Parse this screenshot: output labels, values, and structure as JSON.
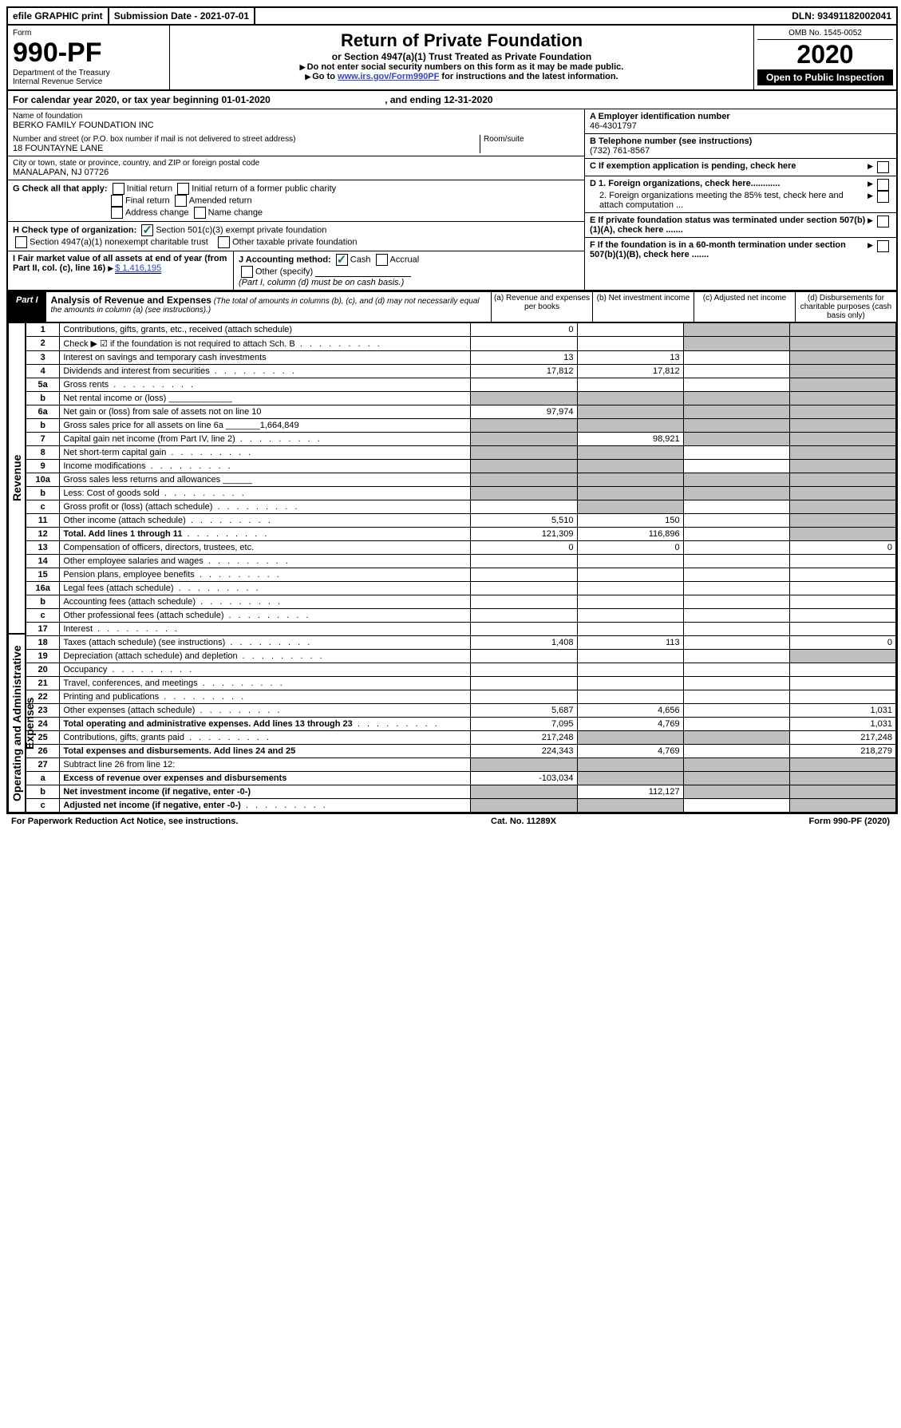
{
  "topbar": {
    "efile": "efile GRAPHIC print",
    "submission": "Submission Date - 2021-07-01",
    "dln": "DLN: 93491182002041"
  },
  "header": {
    "form_label": "Form",
    "form_no": "990-PF",
    "dept": "Department of the Treasury",
    "irs": "Internal Revenue Service",
    "title": "Return of Private Foundation",
    "subtitle": "or Section 4947(a)(1) Trust Treated as Private Foundation",
    "instr1": "Do not enter social security numbers on this form as it may be made public.",
    "instr2_pre": "Go to ",
    "instr2_link": "www.irs.gov/Form990PF",
    "instr2_post": " for instructions and the latest information.",
    "omb": "OMB No. 1545-0052",
    "year": "2020",
    "open": "Open to Public Inspection"
  },
  "calendar": {
    "text_pre": "For calendar year 2020, or tax year beginning ",
    "begin": "01-01-2020",
    "mid": " , and ending ",
    "end": "12-31-2020"
  },
  "entity": {
    "name_label": "Name of foundation",
    "name": "BERKO FAMILY FOUNDATION INC",
    "addr_label": "Number and street (or P.O. box number if mail is not delivered to street address)",
    "addr": "18 FOUNTAYNE LANE",
    "room_label": "Room/suite",
    "city_label": "City or town, state or province, country, and ZIP or foreign postal code",
    "city": "MANALAPAN, NJ  07726",
    "ein_label": "A Employer identification number",
    "ein": "46-4301797",
    "phone_label": "B Telephone number (see instructions)",
    "phone": "(732) 761-8567",
    "c_label": "C If exemption application is pending, check here",
    "d1": "D 1. Foreign organizations, check here............",
    "d2": "2. Foreign organizations meeting the 85% test, check here and attach computation ...",
    "e": "E If private foundation status was terminated under section 507(b)(1)(A), check here .......",
    "f": "F If the foundation is in a 60-month termination under section 507(b)(1)(B), check here .......",
    "g_label": "G Check all that apply:",
    "g_opts": [
      "Initial return",
      "Initial return of a former public charity",
      "Final return",
      "Amended return",
      "Address change",
      "Name change"
    ],
    "h_label": "H Check type of organization:",
    "h1": "Section 501(c)(3) exempt private foundation",
    "h2": "Section 4947(a)(1) nonexempt charitable trust",
    "h3": "Other taxable private foundation",
    "i_label": "I Fair market value of all assets at end of year (from Part II, col. (c), line 16)",
    "i_val": "$  1,416,195",
    "j_label": "J Accounting method:",
    "j_cash": "Cash",
    "j_accrual": "Accrual",
    "j_other": "Other (specify)",
    "j_note": "(Part I, column (d) must be on cash basis.)"
  },
  "part1": {
    "label": "Part I",
    "title": "Analysis of Revenue and Expenses",
    "title_note": "(The total of amounts in columns (b), (c), and (d) may not necessarily equal the amounts in column (a) (see instructions).)",
    "col_a": "(a)   Revenue and expenses per books",
    "col_b": "(b)  Net investment income",
    "col_c": "(c)  Adjusted net income",
    "col_d": "(d)  Disbursements for charitable purposes (cash basis only)",
    "side_rev": "Revenue",
    "side_exp": "Operating and Administrative Expenses"
  },
  "rows": [
    {
      "n": "1",
      "t": "Contributions, gifts, grants, etc., received (attach schedule)",
      "a": "0",
      "b": "",
      "c": "g",
      "d": "g"
    },
    {
      "n": "2",
      "t": "Check ▶ ☑ if the foundation is not required to attach Sch. B",
      "dots": 1,
      "a": "",
      "b": "",
      "c": "g",
      "d": "g",
      "noval": 1
    },
    {
      "n": "3",
      "t": "Interest on savings and temporary cash investments",
      "a": "13",
      "b": "13",
      "c": "",
      "d": "g"
    },
    {
      "n": "4",
      "t": "Dividends and interest from securities",
      "dots": 1,
      "a": "17,812",
      "b": "17,812",
      "c": "",
      "d": "g"
    },
    {
      "n": "5a",
      "t": "Gross rents",
      "dots": 1,
      "a": "",
      "b": "",
      "c": "",
      "d": "g"
    },
    {
      "n": "b",
      "t": "Net rental income or (loss)  _____________",
      "a": "g",
      "b": "g",
      "c": "g",
      "d": "g"
    },
    {
      "n": "6a",
      "t": "Net gain or (loss) from sale of assets not on line 10",
      "a": "97,974",
      "b": "g",
      "c": "g",
      "d": "g"
    },
    {
      "n": "b",
      "t": "Gross sales price for all assets on line 6a _______1,664,849",
      "a": "g",
      "b": "g",
      "c": "g",
      "d": "g"
    },
    {
      "n": "7",
      "t": "Capital gain net income (from Part IV, line 2)",
      "dots": 1,
      "a": "g",
      "b": "98,921",
      "c": "g",
      "d": "g"
    },
    {
      "n": "8",
      "t": "Net short-term capital gain",
      "dots": 1,
      "a": "g",
      "b": "g",
      "c": "",
      "d": "g"
    },
    {
      "n": "9",
      "t": "Income modifications",
      "dots": 1,
      "a": "g",
      "b": "g",
      "c": "",
      "d": "g"
    },
    {
      "n": "10a",
      "t": "Gross sales less returns and allowances  ______",
      "a": "g",
      "b": "g",
      "c": "g",
      "d": "g"
    },
    {
      "n": "b",
      "t": "Less: Cost of goods sold",
      "dots": 1,
      "a": "g",
      "b": "g",
      "c": "g",
      "d": "g"
    },
    {
      "n": "c",
      "t": "Gross profit or (loss) (attach schedule)",
      "dots": 1,
      "a": "",
      "b": "g",
      "c": "",
      "d": "g"
    },
    {
      "n": "11",
      "t": "Other income (attach schedule)",
      "dots": 1,
      "a": "5,510",
      "b": "150",
      "c": "",
      "d": "g"
    },
    {
      "n": "12",
      "t": "Total. Add lines 1 through 11",
      "dots": 1,
      "bold": 1,
      "a": "121,309",
      "b": "116,896",
      "c": "",
      "d": "g"
    },
    {
      "n": "13",
      "t": "Compensation of officers, directors, trustees, etc.",
      "a": "0",
      "b": "0",
      "c": "",
      "d": "0"
    },
    {
      "n": "14",
      "t": "Other employee salaries and wages",
      "dots": 1,
      "a": "",
      "b": "",
      "c": "",
      "d": ""
    },
    {
      "n": "15",
      "t": "Pension plans, employee benefits",
      "dots": 1,
      "a": "",
      "b": "",
      "c": "",
      "d": ""
    },
    {
      "n": "16a",
      "t": "Legal fees (attach schedule)",
      "dots": 1,
      "a": "",
      "b": "",
      "c": "",
      "d": ""
    },
    {
      "n": "b",
      "t": "Accounting fees (attach schedule)",
      "dots": 1,
      "a": "",
      "b": "",
      "c": "",
      "d": ""
    },
    {
      "n": "c",
      "t": "Other professional fees (attach schedule)",
      "dots": 1,
      "a": "",
      "b": "",
      "c": "",
      "d": ""
    },
    {
      "n": "17",
      "t": "Interest",
      "dots": 1,
      "a": "",
      "b": "",
      "c": "",
      "d": ""
    },
    {
      "n": "18",
      "t": "Taxes (attach schedule) (see instructions)",
      "dots": 1,
      "a": "1,408",
      "b": "113",
      "c": "",
      "d": "0"
    },
    {
      "n": "19",
      "t": "Depreciation (attach schedule) and depletion",
      "dots": 1,
      "a": "",
      "b": "",
      "c": "",
      "d": "g"
    },
    {
      "n": "20",
      "t": "Occupancy",
      "dots": 1,
      "a": "",
      "b": "",
      "c": "",
      "d": ""
    },
    {
      "n": "21",
      "t": "Travel, conferences, and meetings",
      "dots": 1,
      "a": "",
      "b": "",
      "c": "",
      "d": ""
    },
    {
      "n": "22",
      "t": "Printing and publications",
      "dots": 1,
      "a": "",
      "b": "",
      "c": "",
      "d": ""
    },
    {
      "n": "23",
      "t": "Other expenses (attach schedule)",
      "dots": 1,
      "a": "5,687",
      "b": "4,656",
      "c": "",
      "d": "1,031"
    },
    {
      "n": "24",
      "t": "Total operating and administrative expenses. Add lines 13 through 23",
      "dots": 1,
      "bold": 1,
      "a": "7,095",
      "b": "4,769",
      "c": "",
      "d": "1,031"
    },
    {
      "n": "25",
      "t": "Contributions, gifts, grants paid",
      "dots": 1,
      "a": "217,248",
      "b": "g",
      "c": "g",
      "d": "217,248"
    },
    {
      "n": "26",
      "t": "Total expenses and disbursements. Add lines 24 and 25",
      "bold": 1,
      "a": "224,343",
      "b": "4,769",
      "c": "",
      "d": "218,279"
    },
    {
      "n": "27",
      "t": "Subtract line 26 from line 12:",
      "a": "g",
      "b": "g",
      "c": "g",
      "d": "g"
    },
    {
      "n": "a",
      "t": "Excess of revenue over expenses and disbursements",
      "bold": 1,
      "a": "-103,034",
      "b": "g",
      "c": "g",
      "d": "g"
    },
    {
      "n": "b",
      "t": "Net investment income (if negative, enter -0-)",
      "bold": 1,
      "a": "g",
      "b": "112,127",
      "c": "g",
      "d": "g"
    },
    {
      "n": "c",
      "t": "Adjusted net income (if negative, enter -0-)",
      "dots": 1,
      "bold": 1,
      "a": "g",
      "b": "g",
      "c": "",
      "d": "g"
    }
  ],
  "footer": {
    "left": "For Paperwork Reduction Act Notice, see instructions.",
    "mid": "Cat. No. 11289X",
    "right": "Form 990-PF (2020)"
  }
}
